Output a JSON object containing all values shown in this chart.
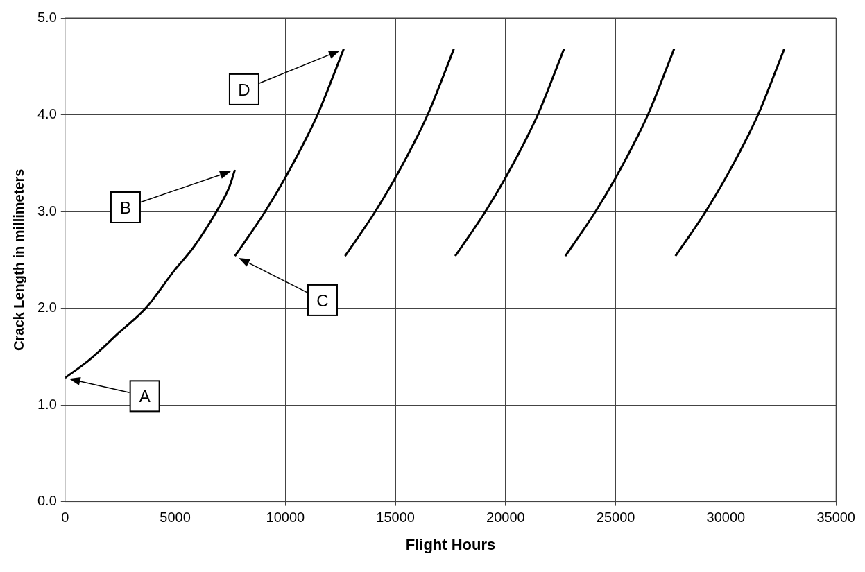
{
  "chart_data": {
    "type": "line",
    "xlabel": "Flight Hours",
    "ylabel": "Crack Length in millimeters",
    "xlim": [
      0,
      35000
    ],
    "xticks": [
      0,
      5000,
      10000,
      15000,
      20000,
      25000,
      30000,
      35000
    ],
    "ylim": [
      0,
      5
    ],
    "yticks": [
      {
        "value": 0,
        "label": "0.0"
      },
      {
        "value": 1,
        "label": "1.0"
      },
      {
        "value": 2,
        "label": "2.0"
      },
      {
        "value": 3,
        "label": "3.0"
      },
      {
        "value": 4,
        "label": "4.0"
      },
      {
        "value": 5,
        "label": "5.0"
      }
    ],
    "grid": true,
    "legend": false,
    "marker": "none",
    "line_style": "solid",
    "series": [
      {
        "color": "#000000",
        "x": [
          0,
          1070,
          2460,
          3660,
          4960,
          5830,
          6900,
          7450,
          7710
        ],
        "values": [
          1.28,
          1.46,
          1.75,
          2.0,
          2.39,
          2.63,
          3.01,
          3.25,
          3.43
        ]
      },
      {
        "color": "#000000",
        "x": [
          7710,
          8200,
          9000,
          10000,
          11000,
          11500,
          12000,
          12650
        ],
        "values": [
          2.54,
          2.7,
          2.97,
          3.35,
          3.78,
          4.02,
          4.3,
          4.68
        ]
      },
      {
        "color": "#000000",
        "x": [
          12710,
          13200,
          14000,
          15000,
          16000,
          16500,
          17000,
          17650
        ],
        "values": [
          2.54,
          2.7,
          2.97,
          3.35,
          3.78,
          4.02,
          4.3,
          4.68
        ]
      },
      {
        "color": "#000000",
        "x": [
          17710,
          18200,
          19000,
          20000,
          21000,
          21500,
          22000,
          22650
        ],
        "values": [
          2.54,
          2.7,
          2.97,
          3.35,
          3.78,
          4.02,
          4.3,
          4.68
        ]
      },
      {
        "color": "#000000",
        "x": [
          22710,
          23200,
          24000,
          25000,
          26000,
          26500,
          27000,
          27650
        ],
        "values": [
          2.54,
          2.7,
          2.97,
          3.35,
          3.78,
          4.02,
          4.3,
          4.68
        ]
      },
      {
        "color": "#000000",
        "x": [
          27710,
          28200,
          29000,
          30000,
          31000,
          31500,
          32000,
          32650
        ],
        "values": [
          2.54,
          2.7,
          2.97,
          3.35,
          3.78,
          4.02,
          4.3,
          4.68
        ]
      }
    ],
    "annotations": [
      "A",
      "B",
      "C",
      "D"
    ]
  }
}
